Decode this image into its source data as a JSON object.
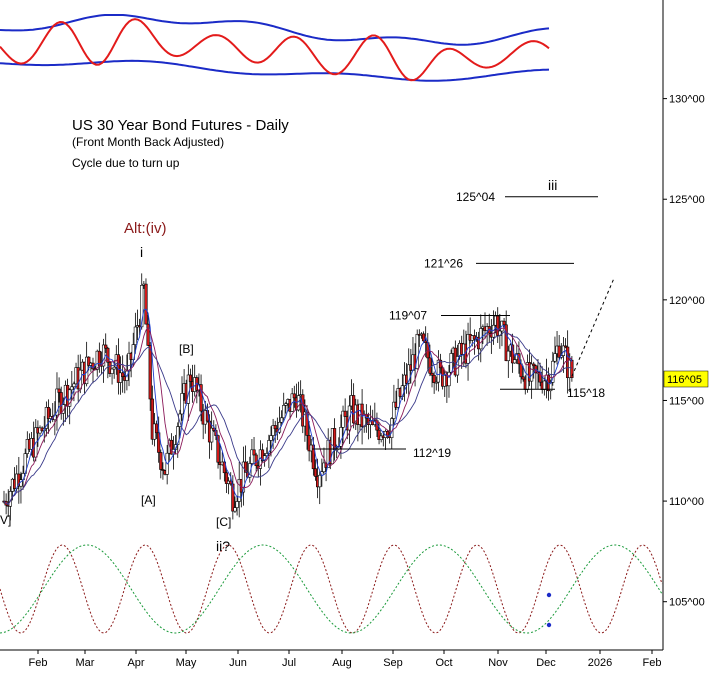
{
  "chart_data": {
    "type": "candlestick",
    "title": "US 30 Year Bond Futures - Daily",
    "subtitle": "(Front Month Back Adjusted)",
    "note": "Cycle due to turn up",
    "y_ticks": [
      "130^00",
      "125^00",
      "120^00",
      "115^00",
      "110^00",
      "105^00"
    ],
    "y_tick_values": [
      130,
      125,
      120,
      115,
      110,
      105
    ],
    "ylim": [
      102.6,
      134.9
    ],
    "x_months": [
      "Feb",
      "Mar",
      "Apr",
      "May",
      "Jun",
      "Jul",
      "Aug",
      "Sep",
      "Oct",
      "Nov",
      "Dec",
      "2026",
      "Feb"
    ],
    "last_price_label": "116^05",
    "last_price": 116.16,
    "levels": [
      {
        "label": "125^04",
        "value": 125.12
      },
      {
        "label": "121^26",
        "value": 121.81
      },
      {
        "label": "119^07",
        "value": 119.22
      },
      {
        "label": "115^18",
        "value": 115.56
      },
      {
        "label": "112^19",
        "value": 112.59
      }
    ],
    "wave_labels": [
      "Alt:(iv)",
      "i",
      "[B]",
      "[A]",
      "[C]",
      "ii?",
      "iii",
      "V]"
    ],
    "price_path_anchors": [
      {
        "day": 0,
        "close": 110.0
      },
      {
        "day": 12,
        "close": 112.5
      },
      {
        "day": 26,
        "close": 115.0
      },
      {
        "day": 46,
        "close": 117.5
      },
      {
        "day": 58,
        "close": 116.0
      },
      {
        "day": 66,
        "close": 120.5
      },
      {
        "day": 70,
        "close": 113.5
      },
      {
        "day": 76,
        "close": 111.6
      },
      {
        "day": 88,
        "close": 116.3
      },
      {
        "day": 96,
        "close": 113.8
      },
      {
        "day": 108,
        "close": 110.3
      },
      {
        "day": 118,
        "close": 112.0
      },
      {
        "day": 138,
        "close": 115.3
      },
      {
        "day": 148,
        "close": 111.5
      },
      {
        "day": 164,
        "close": 114.5
      },
      {
        "day": 174,
        "close": 113.5
      },
      {
        "day": 182,
        "close": 113.8
      },
      {
        "day": 196,
        "close": 117.8
      },
      {
        "day": 206,
        "close": 116.2
      },
      {
        "day": 232,
        "close": 119.0
      },
      {
        "day": 238,
        "close": 117.5
      },
      {
        "day": 248,
        "close": 116.0
      },
      {
        "day": 258,
        "close": 116.3
      },
      {
        "day": 262,
        "close": 117.9
      },
      {
        "day": 268,
        "close": 116.2
      }
    ],
    "projection": [
      {
        "day": 268,
        "value": 116.2
      },
      {
        "day": 288,
        "value": 121.1
      }
    ],
    "oscillator_band": "Top panel: red oscillator with blue envelope bands",
    "cycle_panel": "Bottom panel: dotted red and green sine cycles"
  }
}
